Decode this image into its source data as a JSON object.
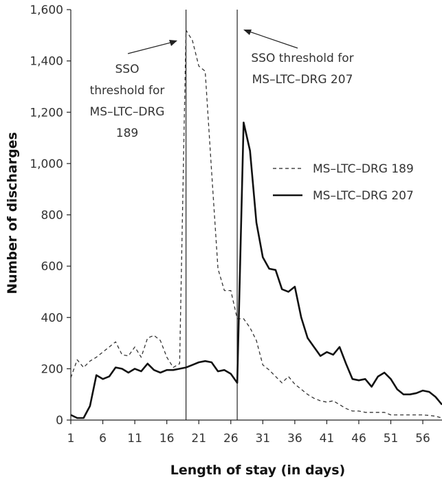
{
  "chart_data": {
    "type": "line",
    "title": "",
    "xlabel": "Length of stay (in days)",
    "ylabel": "Number of discharges",
    "xlim": [
      1,
      59
    ],
    "ylim": [
      0,
      1600
    ],
    "x_ticks": [
      "1",
      "6",
      "11",
      "16",
      "21",
      "26",
      "31",
      "36",
      "41",
      "46",
      "51",
      "56"
    ],
    "y_ticks": [
      "0",
      "200",
      "400",
      "600",
      "800",
      "1,000",
      "1,200",
      "1,400",
      "1,600"
    ],
    "grid": false,
    "legend_position": "right",
    "threshold_lines": [
      {
        "x": 19,
        "label": [
          "SSO",
          "threshold for",
          "MS–LTC–DRG",
          "189"
        ]
      },
      {
        "x": 27,
        "label": [
          "SSO threshold for",
          "MS–LTC–DRG 207"
        ]
      }
    ],
    "x": [
      1,
      2,
      3,
      4,
      5,
      6,
      7,
      8,
      9,
      10,
      11,
      12,
      13,
      14,
      15,
      16,
      17,
      18,
      19,
      20,
      21,
      22,
      23,
      24,
      25,
      26,
      27,
      28,
      29,
      30,
      31,
      32,
      33,
      34,
      35,
      36,
      37,
      38,
      39,
      40,
      41,
      42,
      43,
      44,
      45,
      46,
      47,
      48,
      49,
      50,
      51,
      52,
      53,
      54,
      55,
      56,
      57,
      58,
      59
    ],
    "series": [
      {
        "name": "MS–LTC–DRG 189",
        "style": "dashed",
        "values": [
          165,
          235,
          205,
          230,
          245,
          265,
          285,
          305,
          255,
          250,
          285,
          245,
          320,
          330,
          310,
          245,
          205,
          220,
          1520,
          1480,
          1380,
          1360,
          970,
          590,
          505,
          505,
          395,
          395,
          360,
          310,
          215,
          195,
          170,
          145,
          170,
          140,
          120,
          100,
          85,
          75,
          70,
          75,
          60,
          45,
          35,
          35,
          30,
          30,
          30,
          30,
          20,
          20,
          20,
          20,
          20,
          20,
          18,
          15,
          8
        ]
      },
      {
        "name": "MS–LTC–DRG 207",
        "style": "solid",
        "values": [
          20,
          8,
          8,
          55,
          175,
          160,
          170,
          205,
          200,
          185,
          200,
          190,
          220,
          195,
          185,
          195,
          195,
          200,
          205,
          215,
          225,
          230,
          225,
          190,
          195,
          180,
          145,
          1160,
          1050,
          770,
          635,
          590,
          585,
          510,
          500,
          520,
          400,
          320,
          285,
          250,
          265,
          255,
          285,
          220,
          160,
          155,
          160,
          130,
          170,
          185,
          160,
          120,
          100,
          100,
          105,
          115,
          110,
          90,
          60
        ]
      }
    ]
  }
}
